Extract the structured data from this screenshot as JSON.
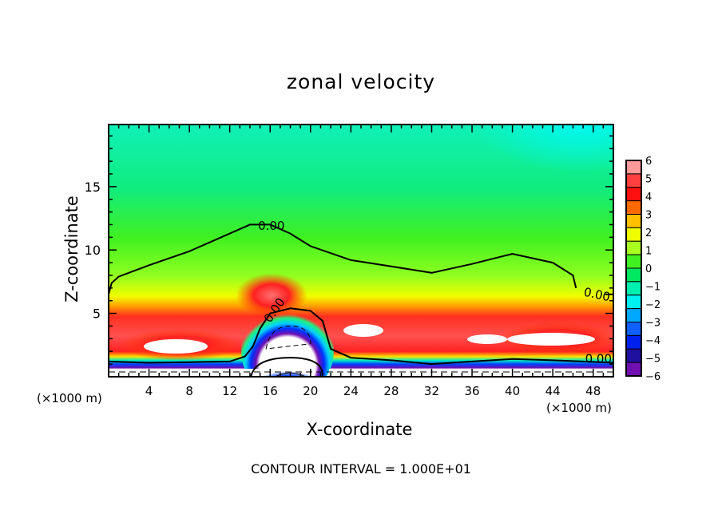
{
  "chart_data": {
    "type": "heatmap",
    "title": "zonal velocity",
    "xlabel": "X-coordinate",
    "ylabel": "Z-coordinate",
    "x_unit_label": "(×1000 m)",
    "x_unit_label_right": "(×1000 m)",
    "xlim": [
      0,
      50
    ],
    "ylim": [
      0,
      19.9
    ],
    "x_ticks": [
      4,
      8,
      12,
      16,
      20,
      24,
      28,
      32,
      36,
      40,
      44,
      48
    ],
    "y_ticks": [
      5,
      10,
      15
    ],
    "colorbar": {
      "levels": [
        6,
        5,
        4,
        3,
        2,
        1,
        0,
        -1,
        -2,
        -3,
        -4,
        -5,
        -6
      ],
      "labels": [
        "6",
        "5",
        "4",
        "3",
        "2",
        "1",
        "0",
        "−1",
        "−2",
        "−3",
        "−4",
        "−5",
        "−6"
      ],
      "colors": [
        "#ff9a9a",
        "#ff4040",
        "#ff1010",
        "#ff6a00",
        "#ffc000",
        "#f0ff00",
        "#a8ff20",
        "#40f020",
        "#00e860",
        "#00f0b0",
        "#00f0f0",
        "#00a8ff",
        "#1060ff",
        "#0020f0",
        "#2010a0",
        "#7010b0"
      ]
    },
    "contour_labels": [
      "0.00",
      "0.00",
      "0.00",
      "0.00"
    ],
    "zero_contour_upper": {
      "x": [
        0,
        0.3,
        1,
        4,
        8,
        12,
        14,
        16,
        18,
        20,
        24,
        28,
        32,
        36,
        40,
        44,
        46
      ],
      "z": [
        6.5,
        7.4,
        7.9,
        8.8,
        9.9,
        11.3,
        12.0,
        12.0,
        11.3,
        10.3,
        9.2,
        8.7,
        8.2,
        8.9,
        9.7,
        9.0,
        8.0
      ]
    },
    "contour_interval_text": "CONTOUR INTERVAL = 1.000E+01"
  }
}
